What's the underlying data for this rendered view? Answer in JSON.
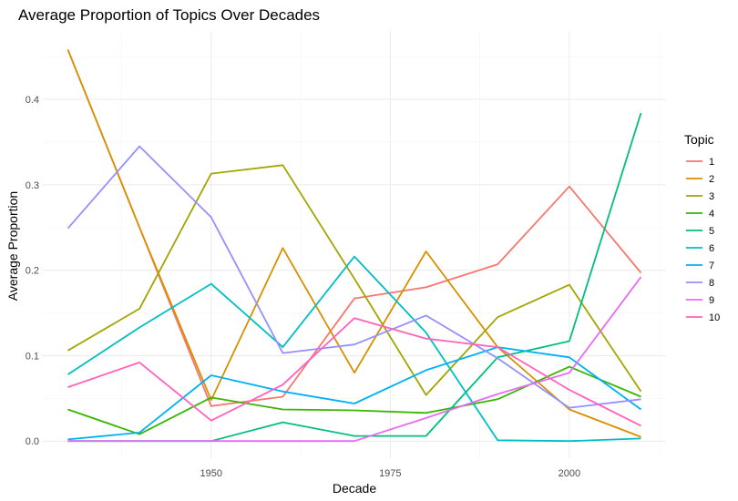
{
  "chart_data": {
    "type": "line",
    "title": "Average Proportion of Topics Over Decades",
    "xlabel": "Decade",
    "ylabel": "Average Proportion",
    "legend_title": "Topic",
    "legend_position": "right",
    "grid": true,
    "xlim": [
      1926.5,
      2013.5
    ],
    "ylim": [
      -0.02,
      0.48
    ],
    "x_ticks": [
      1950,
      1975,
      2000
    ],
    "y_ticks": [
      0.0,
      0.1,
      0.2,
      0.3,
      0.4
    ],
    "y_tick_labels": [
      "0.0",
      "0.1",
      "0.2",
      "0.3",
      "0.4"
    ],
    "x": [
      1930,
      1940,
      1950,
      1960,
      1970,
      1980,
      1990,
      2000,
      2010
    ],
    "series": [
      {
        "name": "1",
        "color": "#F8766D",
        "values": [
          0.458,
          0.25,
          0.041,
          0.052,
          0.167,
          0.18,
          0.207,
          0.298,
          0.197
        ]
      },
      {
        "name": "2",
        "color": "#D89000",
        "values": [
          0.458,
          0.25,
          0.048,
          0.226,
          0.08,
          0.222,
          0.11,
          0.037,
          0.005
        ]
      },
      {
        "name": "3",
        "color": "#A3A500",
        "values": [
          0.106,
          0.155,
          0.313,
          0.323,
          0.19,
          0.054,
          0.145,
          0.183,
          0.058
        ]
      },
      {
        "name": "4",
        "color": "#39B600",
        "values": [
          0.037,
          0.008,
          0.051,
          0.037,
          0.036,
          0.033,
          0.049,
          0.087,
          0.052
        ]
      },
      {
        "name": "5",
        "color": "#00BF7D",
        "values": [
          0.0,
          0.0,
          0.0,
          0.022,
          0.006,
          0.006,
          0.098,
          0.117,
          0.384
        ]
      },
      {
        "name": "6",
        "color": "#00BFC4",
        "values": [
          0.078,
          0.133,
          0.184,
          0.11,
          0.216,
          0.127,
          0.001,
          0.0,
          0.003
        ]
      },
      {
        "name": "7",
        "color": "#00B0F6",
        "values": [
          0.002,
          0.01,
          0.077,
          0.058,
          0.044,
          0.083,
          0.11,
          0.098,
          0.037
        ]
      },
      {
        "name": "8",
        "color": "#9590FF",
        "values": [
          0.249,
          0.345,
          0.262,
          0.103,
          0.113,
          0.147,
          0.097,
          0.039,
          0.049
        ]
      },
      {
        "name": "9",
        "color": "#E76BF3",
        "values": [
          0.0,
          0.0,
          0.0,
          0.0,
          0.0,
          0.027,
          0.055,
          0.08,
          0.192
        ]
      },
      {
        "name": "10",
        "color": "#FF62BC",
        "values": [
          0.063,
          0.092,
          0.024,
          0.066,
          0.144,
          0.12,
          0.11,
          0.06,
          0.018
        ]
      }
    ]
  }
}
